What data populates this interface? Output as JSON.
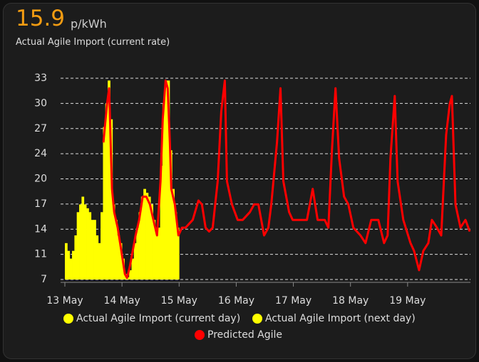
{
  "header": {
    "value": "15.9",
    "unit": "p/kWh",
    "name": "Actual Agile Import (current rate)"
  },
  "chart_data": {
    "type": "combo",
    "xlim": [
      12.925,
      20.1
    ],
    "xticks": [
      {
        "value": 13,
        "label": "13 May"
      },
      {
        "value": 14,
        "label": "14 May"
      },
      {
        "value": 15,
        "label": "15 May"
      },
      {
        "value": 16,
        "label": "16 May"
      },
      {
        "value": 17,
        "label": "17 May"
      },
      {
        "value": 18,
        "label": "18 May"
      },
      {
        "value": 19,
        "label": "19 May"
      }
    ],
    "ylim": [
      7.3,
      33.3
    ],
    "yticks": [
      {
        "value": 7.3,
        "label": "7"
      },
      {
        "value": 10.55,
        "label": "11"
      },
      {
        "value": 13.8,
        "label": "14"
      },
      {
        "value": 17.05,
        "label": "17"
      },
      {
        "value": 20.3,
        "label": "20"
      },
      {
        "value": 23.55,
        "label": "24"
      },
      {
        "value": 26.8,
        "label": "27"
      },
      {
        "value": 30.05,
        "label": "30"
      },
      {
        "value": 33.3,
        "label": "33"
      }
    ],
    "grid": true,
    "series": [
      {
        "name": "Actual Agile Import (current day)",
        "type": "bar",
        "color": "#ffff00",
        "x": [
          13,
          13.042,
          13.083,
          13.125,
          13.167,
          13.208,
          13.25,
          13.292,
          13.333,
          13.375,
          13.417,
          13.458,
          13.5,
          13.542,
          13.583,
          13.625,
          13.667,
          13.708,
          13.75,
          13.792,
          13.833,
          13.875,
          13.917,
          13.958
        ],
        "values": [
          12,
          11,
          10,
          11,
          13,
          16,
          17,
          18,
          17,
          16.5,
          16,
          15,
          15,
          13,
          12,
          16,
          27,
          30,
          33,
          28,
          17,
          15,
          13,
          12
        ]
      },
      {
        "name": "Actual Agile Import (next day)",
        "type": "bar",
        "color": "#ffff00",
        "x": [
          14,
          14.042,
          14.083,
          14.125,
          14.167,
          14.208,
          14.25,
          14.292,
          14.333,
          14.375,
          14.417,
          14.458,
          14.5,
          14.542,
          14.583,
          14.625,
          14.667,
          14.708,
          14.75,
          14.792,
          14.833,
          14.875,
          14.917,
          14.958
        ],
        "values": [
          10,
          8,
          7.6,
          8.5,
          10,
          12,
          14,
          16,
          18,
          19,
          18.5,
          18,
          17,
          15,
          14,
          14,
          22,
          30,
          33,
          33,
          24,
          19,
          16,
          14
        ]
      },
      {
        "name": "Predicted Agile",
        "type": "line",
        "color": "#ff0000",
        "x": [
          13.675,
          13.738,
          13.775,
          13.825,
          13.863,
          13.925,
          13.988,
          14.05,
          14.088,
          14.138,
          14.188,
          14.238,
          14.3,
          14.363,
          14.425,
          14.488,
          14.55,
          14.613,
          14.675,
          14.713,
          14.763,
          14.8,
          14.838,
          14.863,
          14.925,
          14.988,
          15.05,
          15.113,
          15.238,
          15.338,
          15.4,
          15.463,
          15.525,
          15.588,
          15.675,
          15.738,
          15.8,
          15.838,
          15.925,
          16.025,
          16.113,
          16.238,
          16.313,
          16.388,
          16.488,
          16.563,
          16.613,
          16.713,
          16.775,
          16.825,
          16.925,
          16.988,
          17.113,
          17.238,
          17.338,
          17.425,
          17.55,
          17.613,
          17.675,
          17.738,
          17.8,
          17.888,
          17.963,
          18.05,
          18.175,
          18.263,
          18.363,
          18.488,
          18.588,
          18.65,
          18.7,
          18.775,
          18.825,
          18.925,
          19.05,
          19.113,
          19.2,
          19.275,
          19.363,
          19.425,
          19.513,
          19.588,
          19.675,
          19.738,
          19.775,
          19.838,
          19.925,
          20.013,
          20.088
        ],
        "values": [
          25,
          30,
          32,
          19,
          16,
          14,
          11,
          8,
          7.5,
          9,
          11,
          13,
          15,
          18,
          18,
          17,
          15,
          13,
          20,
          28,
          33,
          32,
          25,
          19,
          17,
          13,
          14,
          14,
          15,
          17.5,
          17,
          14,
          13.5,
          14,
          20,
          29,
          33,
          20,
          17,
          15,
          15,
          16,
          17,
          17,
          13,
          14,
          17,
          25,
          32,
          20,
          16,
          15,
          15,
          15,
          19,
          15,
          15,
          14,
          24,
          32,
          23,
          18,
          17,
          14,
          13,
          12,
          15,
          15,
          12,
          13,
          23,
          31,
          20,
          15,
          12,
          11,
          8.5,
          11,
          12,
          15,
          14,
          13,
          26,
          30,
          31,
          17,
          14,
          15,
          13.5
        ]
      }
    ]
  }
}
